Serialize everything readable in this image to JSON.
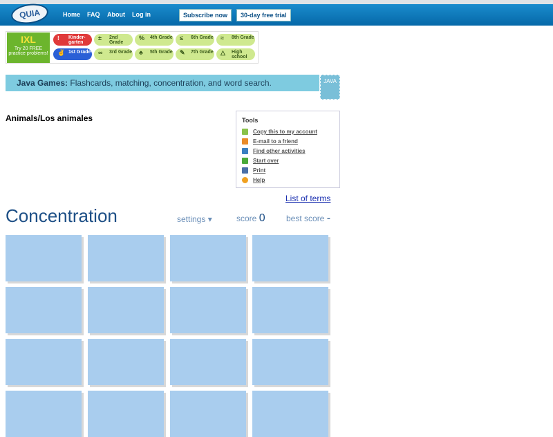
{
  "header": {
    "logo": "QUIA",
    "nav": [
      "Home",
      "FAQ",
      "About",
      "Log in"
    ],
    "subscribe": "Subscribe now",
    "trial": "30-day free trial"
  },
  "ixl": {
    "logo": "IXL",
    "promo": "Try 20 FREE practice problems!",
    "grades": [
      {
        "label": "Kinder-garten",
        "icon": "⁝",
        "color": "#e03a3a"
      },
      {
        "label": "2nd Grade",
        "icon": "±",
        "color": "#cfe98f"
      },
      {
        "label": "4th Grade",
        "icon": "%",
        "color": "#cfe98f"
      },
      {
        "label": "6th Grade",
        "icon": "≤",
        "color": "#cfe98f"
      },
      {
        "label": "8th Grade",
        "icon": "≈",
        "color": "#cfe98f"
      },
      {
        "label": "1st Grade",
        "icon": "✌",
        "color": "#2a5fd6"
      },
      {
        "label": "3rd Grade",
        "icon": "∞",
        "color": "#cfe98f"
      },
      {
        "label": "5th Grade",
        "icon": "♣",
        "color": "#cfe98f"
      },
      {
        "label": "7th Grade",
        "icon": "✎",
        "color": "#cfe98f"
      },
      {
        "label": "High school",
        "icon": "△",
        "color": "#cfe98f"
      }
    ]
  },
  "java": {
    "bold": "Java Games:",
    "text": " Flashcards, matching, concentration, and word search.",
    "icon": "JAVA"
  },
  "activity_title": "Animals/Los animales",
  "tools": {
    "heading": "Tools",
    "items": [
      {
        "label": "Copy this to my account",
        "icon": "copy-icon",
        "color": "#8ac24a"
      },
      {
        "label": "E-mail to a friend",
        "icon": "email-icon",
        "color": "#e98b2a"
      },
      {
        "label": "Find other activities",
        "icon": "search-icon",
        "color": "#3a7fc1"
      },
      {
        "label": "Start over",
        "icon": "rewind-icon",
        "color": "#4aaa3a"
      },
      {
        "label": "Print",
        "icon": "print-icon",
        "color": "#4a6fa8"
      },
      {
        "label": "Help",
        "icon": "help-icon",
        "color": "#f0a020"
      }
    ]
  },
  "list_of_terms": "List of terms",
  "game": {
    "title": "Concentration",
    "settings": "settings ▾",
    "score_label": "score",
    "score": "0",
    "best_label": "best score",
    "best": "-",
    "card_color": "#a9cdee",
    "rows": 4,
    "cols": 4
  }
}
